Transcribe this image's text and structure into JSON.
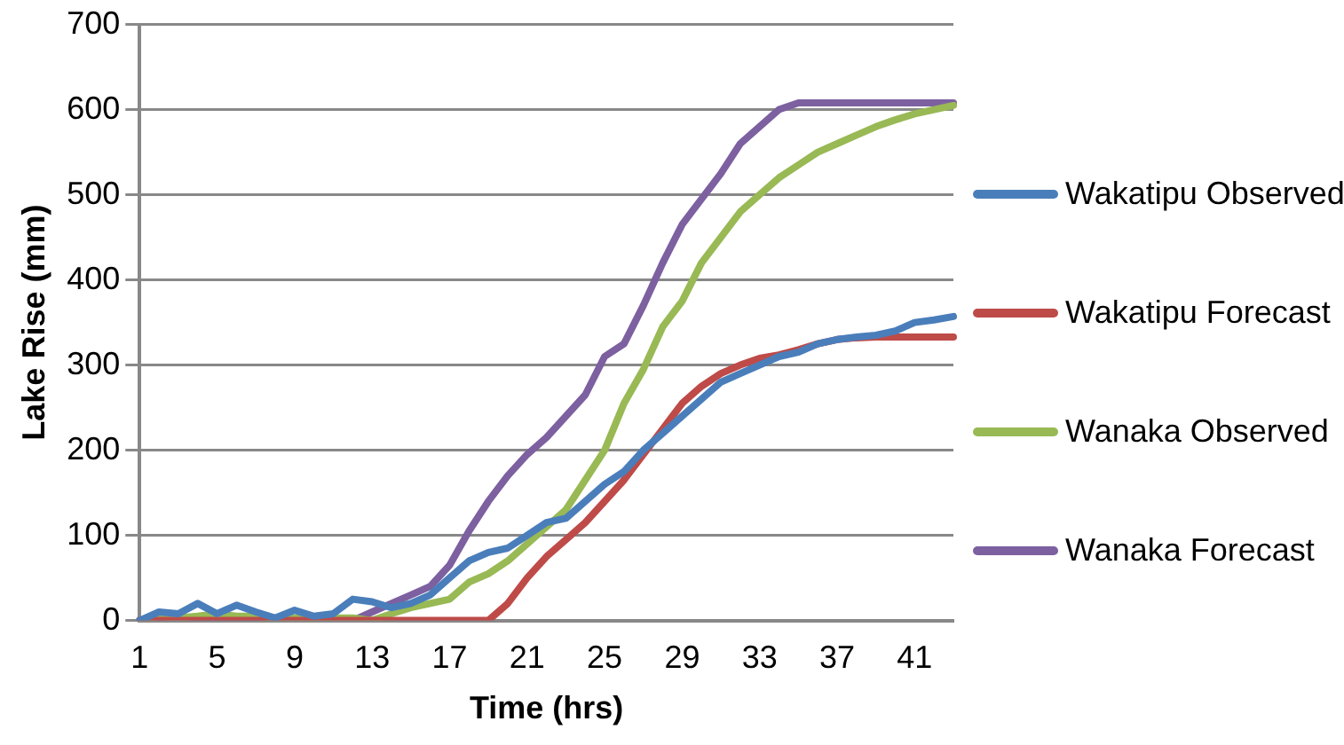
{
  "chart_data": {
    "type": "line",
    "xlabel": "Time (hrs)",
    "ylabel": "Lake Rise (mm)",
    "categories": [
      "1",
      null,
      null,
      null,
      "5",
      null,
      null,
      null,
      "9",
      null,
      null,
      null,
      "13",
      null,
      null,
      null,
      "17",
      null,
      null,
      null,
      "21",
      null,
      null,
      null,
      "25",
      null,
      null,
      null,
      "29",
      null,
      null,
      null,
      "33",
      null,
      null,
      null,
      "37",
      null,
      null,
      null,
      "41",
      null,
      null
    ],
    "series": [
      {
        "name": "Wakatipu Observed",
        "color": "#4a7ebb",
        "values": [
          0,
          10,
          8,
          20,
          8,
          18,
          10,
          3,
          12,
          5,
          8,
          25,
          22,
          15,
          20,
          30,
          50,
          70,
          80,
          85,
          100,
          115,
          120,
          140,
          160,
          175,
          200,
          220,
          240,
          260,
          280,
          290,
          300,
          310,
          315,
          325,
          330,
          333,
          335,
          340,
          350,
          353,
          357
        ]
      },
      {
        "name": "Wakatipu Forecast",
        "color": "#be4b48",
        "values": [
          0,
          0,
          0,
          0,
          0,
          0,
          0,
          0,
          0,
          0,
          0,
          0,
          0,
          0,
          0,
          0,
          0,
          0,
          0,
          20,
          50,
          75,
          95,
          115,
          140,
          165,
          195,
          225,
          255,
          275,
          290,
          300,
          308,
          312,
          318,
          325,
          330,
          332,
          333,
          333,
          333,
          333,
          333
        ]
      },
      {
        "name": "Wanaka Observed",
        "color": "#98b954",
        "values": [
          0,
          5,
          3,
          5,
          8,
          5,
          5,
          3,
          3,
          3,
          3,
          3,
          0,
          8,
          15,
          20,
          25,
          45,
          55,
          70,
          90,
          110,
          130,
          165,
          200,
          255,
          295,
          345,
          375,
          420,
          450,
          480,
          500,
          520,
          535,
          550,
          560,
          570,
          580,
          588,
          595,
          600,
          605
        ]
      },
      {
        "name": "Wanaka Forecast",
        "color": "#7d60a0",
        "values": [
          0,
          0,
          0,
          0,
          0,
          0,
          0,
          0,
          0,
          0,
          0,
          0,
          10,
          20,
          30,
          40,
          65,
          105,
          140,
          170,
          195,
          215,
          240,
          265,
          310,
          325,
          370,
          420,
          465,
          495,
          525,
          560,
          580,
          600,
          608,
          608,
          608,
          608,
          608,
          608,
          608,
          608,
          608
        ]
      }
    ],
    "ylim": [
      0,
      700
    ],
    "yticks": [
      0,
      100,
      200,
      300,
      400,
      500,
      600,
      700
    ],
    "grid": "y",
    "legend": "right",
    "marker": "none",
    "line_style": "solid"
  }
}
